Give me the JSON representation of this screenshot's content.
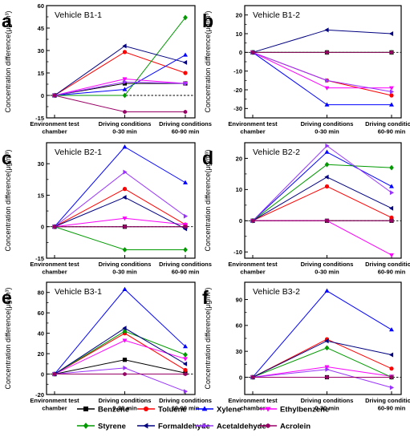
{
  "figure": {
    "ylabel": "Concentration difference(μg/m³)",
    "categories": [
      "Environment test chamber",
      "Driving conditions 0-30 min",
      "Driving conditions 60-90 min"
    ]
  },
  "legend": [
    {
      "name": "Benzene",
      "color": "#000000",
      "marker": "square"
    },
    {
      "name": "Toluene",
      "color": "#ff0000",
      "marker": "circle"
    },
    {
      "name": "Xylene",
      "color": "#0000ff",
      "marker": "triangle-up"
    },
    {
      "name": "Ethylbenzene",
      "color": "#ff00ff",
      "marker": "triangle-down"
    },
    {
      "name": "Styrene",
      "color": "#009900",
      "marker": "diamond"
    },
    {
      "name": "Formaldehyde",
      "color": "#000080",
      "marker": "triangle-left"
    },
    {
      "name": "Acetaldehyde",
      "color": "#9933ff",
      "marker": "triangle-right"
    },
    {
      "name": "Acrolein",
      "color": "#990066",
      "marker": "hexagon"
    }
  ],
  "chart_data": [
    {
      "letter": "a",
      "title": "Vehicle B1-1",
      "type": "line",
      "ylim": [
        -15,
        60
      ],
      "yticks": [
        -15,
        0,
        15,
        30,
        45,
        60
      ],
      "categories": [
        "Environment test chamber",
        "Driving conditions 0-30 min",
        "Driving conditions 60-90 min"
      ],
      "series": [
        {
          "name": "Benzene",
          "values": [
            0,
            8,
            8
          ]
        },
        {
          "name": "Toluene",
          "values": [
            0,
            29,
            15
          ]
        },
        {
          "name": "Xylene",
          "values": [
            0,
            4,
            27
          ]
        },
        {
          "name": "Ethylbenzene",
          "values": [
            0,
            11,
            8
          ]
        },
        {
          "name": "Styrene",
          "values": [
            0,
            0,
            52
          ]
        },
        {
          "name": "Formaldehyde",
          "values": [
            0,
            33,
            22
          ]
        },
        {
          "name": "Acetaldehyde",
          "values": [
            0,
            9,
            8
          ]
        },
        {
          "name": "Acrolein",
          "values": [
            0,
            -11,
            -11
          ]
        }
      ]
    },
    {
      "letter": "b",
      "title": "Vehicle B1-2",
      "type": "line",
      "ylim": [
        -35,
        25
      ],
      "yticks": [
        -30,
        -20,
        -10,
        0,
        10,
        20
      ],
      "categories": [
        "Environment test chamber",
        "Driving conditions 0-30 min",
        "Driving conditions 60-90 min"
      ],
      "series": [
        {
          "name": "Benzene",
          "values": [
            0,
            0,
            0
          ]
        },
        {
          "name": "Toluene",
          "values": [
            0,
            -15,
            -23
          ]
        },
        {
          "name": "Xylene",
          "values": [
            0,
            -28,
            -28
          ]
        },
        {
          "name": "Ethylbenzene",
          "values": [
            0,
            -19,
            -19
          ]
        },
        {
          "name": "Styrene",
          "values": [
            0,
            0,
            0
          ]
        },
        {
          "name": "Formaldehyde",
          "values": [
            0,
            12,
            10
          ]
        },
        {
          "name": "Acetaldehyde",
          "values": [
            0,
            -15,
            -21
          ]
        },
        {
          "name": "Acrolein",
          "values": [
            0,
            0,
            0
          ]
        }
      ]
    },
    {
      "letter": "c",
      "title": "Vehicle B2-1",
      "type": "line",
      "ylim": [
        -15,
        40
      ],
      "yticks": [
        -15,
        0,
        15,
        30
      ],
      "categories": [
        "Environment test chamber",
        "Driving conditions 0-30 min",
        "Driving conditions 60-90 min"
      ],
      "series": [
        {
          "name": "Benzene",
          "values": [
            0,
            0,
            0
          ]
        },
        {
          "name": "Toluene",
          "values": [
            0,
            18,
            1
          ]
        },
        {
          "name": "Xylene",
          "values": [
            0,
            38,
            21
          ]
        },
        {
          "name": "Ethylbenzene",
          "values": [
            0,
            4,
            1
          ]
        },
        {
          "name": "Styrene",
          "values": [
            0,
            -11,
            -11
          ]
        },
        {
          "name": "Formaldehyde",
          "values": [
            0,
            14,
            -1
          ]
        },
        {
          "name": "Acetaldehyde",
          "values": [
            0,
            26,
            5
          ]
        },
        {
          "name": "Acrolein",
          "values": [
            0,
            0,
            0
          ]
        }
      ]
    },
    {
      "letter": "d",
      "title": "Vehicle B2-2",
      "type": "line",
      "ylim": [
        -12,
        25
      ],
      "yticks": [
        -10,
        0,
        10,
        20
      ],
      "categories": [
        "Environment test chamber",
        "Driving conditions 0-30 min",
        "Driving conditions 60-90 min"
      ],
      "series": [
        {
          "name": "Benzene",
          "values": [
            0,
            0,
            0
          ]
        },
        {
          "name": "Toluene",
          "values": [
            0,
            11,
            1
          ]
        },
        {
          "name": "Xylene",
          "values": [
            0,
            22,
            11
          ]
        },
        {
          "name": "Ethylbenzene",
          "values": [
            0,
            0,
            -11
          ]
        },
        {
          "name": "Styrene",
          "values": [
            0,
            18,
            17
          ]
        },
        {
          "name": "Formaldehyde",
          "values": [
            0,
            14,
            4
          ]
        },
        {
          "name": "Acetaldehyde",
          "values": [
            0,
            24,
            9
          ]
        },
        {
          "name": "Acrolein",
          "values": [
            0,
            0,
            0
          ]
        }
      ]
    },
    {
      "letter": "e",
      "title": "Vehicle B3-1",
      "type": "line",
      "ylim": [
        -20,
        90
      ],
      "yticks": [
        -20,
        0,
        20,
        40,
        60,
        80
      ],
      "categories": [
        "Environment test chamber",
        "Driving conditions 0-30 min",
        "Driving conditions 60-90 min"
      ],
      "series": [
        {
          "name": "Benzene",
          "values": [
            0,
            14,
            1
          ]
        },
        {
          "name": "Toluene",
          "values": [
            0,
            40,
            4
          ]
        },
        {
          "name": "Xylene",
          "values": [
            0,
            83,
            27
          ]
        },
        {
          "name": "Ethylbenzene",
          "values": [
            0,
            33,
            15
          ]
        },
        {
          "name": "Styrene",
          "values": [
            0,
            42,
            19
          ]
        },
        {
          "name": "Formaldehyde",
          "values": [
            0,
            45,
            10
          ]
        },
        {
          "name": "Acetaldehyde",
          "values": [
            0,
            6,
            -17
          ]
        },
        {
          "name": "Acrolein",
          "values": [
            0,
            0,
            0
          ]
        }
      ]
    },
    {
      "letter": "f",
      "title": "Vehicle B3-2",
      "type": "line",
      "ylim": [
        -20,
        110
      ],
      "yticks": [
        0,
        30,
        60,
        90
      ],
      "categories": [
        "Environment test chamber",
        "Driving conditions 0-30 min",
        "Driving conditions 60-90 min"
      ],
      "series": [
        {
          "name": "Benzene",
          "values": [
            0,
            0,
            0
          ]
        },
        {
          "name": "Toluene",
          "values": [
            0,
            44,
            10
          ]
        },
        {
          "name": "Xylene",
          "values": [
            0,
            100,
            55
          ]
        },
        {
          "name": "Ethylbenzene",
          "values": [
            0,
            12,
            1
          ]
        },
        {
          "name": "Styrene",
          "values": [
            0,
            34,
            0
          ]
        },
        {
          "name": "Formaldehyde",
          "values": [
            0,
            42,
            26
          ]
        },
        {
          "name": "Acetaldehyde",
          "values": [
            0,
            9,
            -12
          ]
        },
        {
          "name": "Acrolein",
          "values": [
            0,
            0,
            0
          ]
        }
      ]
    }
  ]
}
